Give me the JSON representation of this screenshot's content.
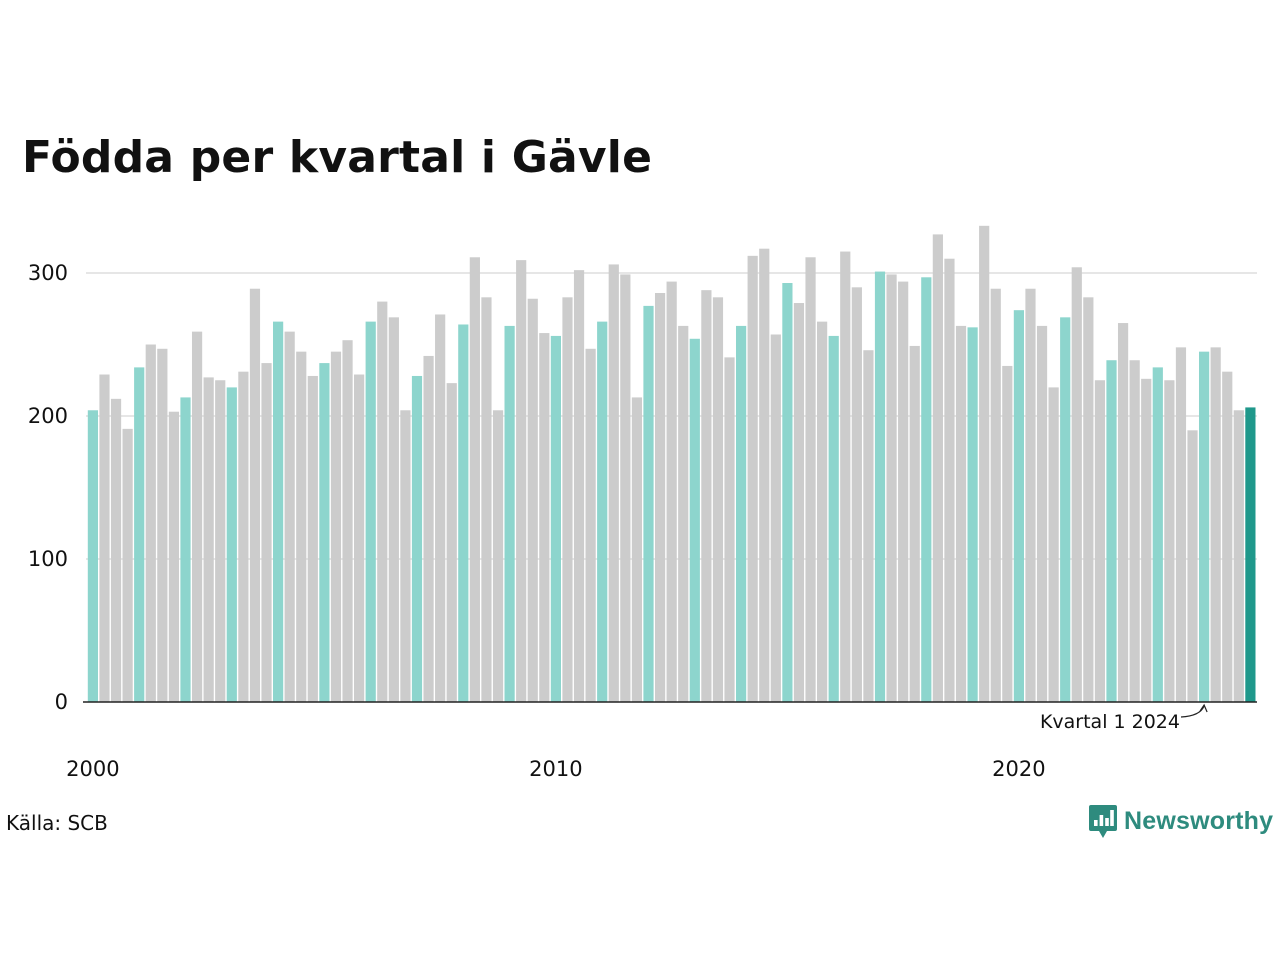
{
  "chart_data": {
    "type": "bar",
    "title": "Födda per kvartal i Gävle",
    "xlabel": "",
    "ylabel": "",
    "ylim": [
      0,
      340
    ],
    "yticks": [
      0,
      100,
      200,
      300
    ],
    "xticks": [
      "2000",
      "2010",
      "2020"
    ],
    "grid": true,
    "legend": "none",
    "highlight_rule": "kvartal 1 of each year",
    "colors": {
      "q1": "#8dd5cd",
      "other": "#cccccc",
      "latest": "#1f988b",
      "grid": "#dddddd",
      "axis": "#222222"
    },
    "categories": [
      "2000 K1",
      "2000 K2",
      "2000 K3",
      "2000 K4",
      "2001 K1",
      "2001 K2",
      "2001 K3",
      "2001 K4",
      "2002 K1",
      "2002 K2",
      "2002 K3",
      "2002 K4",
      "2003 K1",
      "2003 K2",
      "2003 K3",
      "2003 K4",
      "2004 K1",
      "2004 K2",
      "2004 K3",
      "2004 K4",
      "2005 K1",
      "2005 K2",
      "2005 K3",
      "2005 K4",
      "2006 K1",
      "2006 K2",
      "2006 K3",
      "2006 K4",
      "2007 K1",
      "2007 K2",
      "2007 K3",
      "2007 K4",
      "2008 K1",
      "2008 K2",
      "2008 K3",
      "2008 K4",
      "2009 K1",
      "2009 K2",
      "2009 K3",
      "2009 K4",
      "2010 K1",
      "2010 K2",
      "2010 K3",
      "2010 K4",
      "2011 K1",
      "2011 K2",
      "2011 K3",
      "2011 K4",
      "2012 K1",
      "2012 K2",
      "2012 K3",
      "2012 K4",
      "2013 K1",
      "2013 K2",
      "2013 K3",
      "2013 K4",
      "2014 K1",
      "2014 K2",
      "2014 K3",
      "2014 K4",
      "2015 K1",
      "2015 K2",
      "2015 K3",
      "2015 K4",
      "2016 K1",
      "2016 K2",
      "2016 K3",
      "2016 K4",
      "2017 K1",
      "2017 K2",
      "2017 K3",
      "2017 K4",
      "2018 K1",
      "2018 K2",
      "2018 K3",
      "2018 K4",
      "2019 K1",
      "2019 K2",
      "2019 K3",
      "2019 K4",
      "2020 K1",
      "2020 K2",
      "2020 K3",
      "2020 K4",
      "2021 K1",
      "2021 K2",
      "2021 K3",
      "2021 K4",
      "2022 K1",
      "2022 K2",
      "2022 K3",
      "2022 K4",
      "2023 K1",
      "2023 K2",
      "2023 K3",
      "2023 K4",
      "2024 K1",
      "2024 K2",
      "2024 K3",
      "2024 K4",
      "2025 K1"
    ],
    "values": [
      204,
      229,
      212,
      191,
      234,
      250,
      247,
      203,
      213,
      259,
      227,
      225,
      220,
      231,
      289,
      237,
      266,
      259,
      245,
      228,
      237,
      245,
      253,
      229,
      266,
      280,
      269,
      204,
      228,
      242,
      271,
      223,
      264,
      311,
      283,
      204,
      263,
      309,
      282,
      258,
      256,
      283,
      302,
      247,
      266,
      306,
      299,
      213,
      277,
      286,
      294,
      263,
      254,
      288,
      283,
      241,
      263,
      312,
      317,
      257,
      293,
      279,
      311,
      266,
      256,
      315,
      290,
      246,
      301,
      299,
      294,
      249,
      297,
      327,
      310,
      263,
      262,
      333,
      289,
      235,
      274,
      289,
      263,
      220,
      269,
      304,
      283,
      225,
      239,
      265,
      239,
      226,
      234,
      225,
      248,
      190,
      245,
      248,
      231,
      204,
      206
    ],
    "annotation": {
      "text": "Kvartal 1 2024",
      "target": "2024 K1"
    }
  },
  "source": {
    "label": "Källa: SCB"
  },
  "logo": {
    "text": "Newsworthy",
    "icon": "bar-chart-speech-bubble-icon"
  }
}
